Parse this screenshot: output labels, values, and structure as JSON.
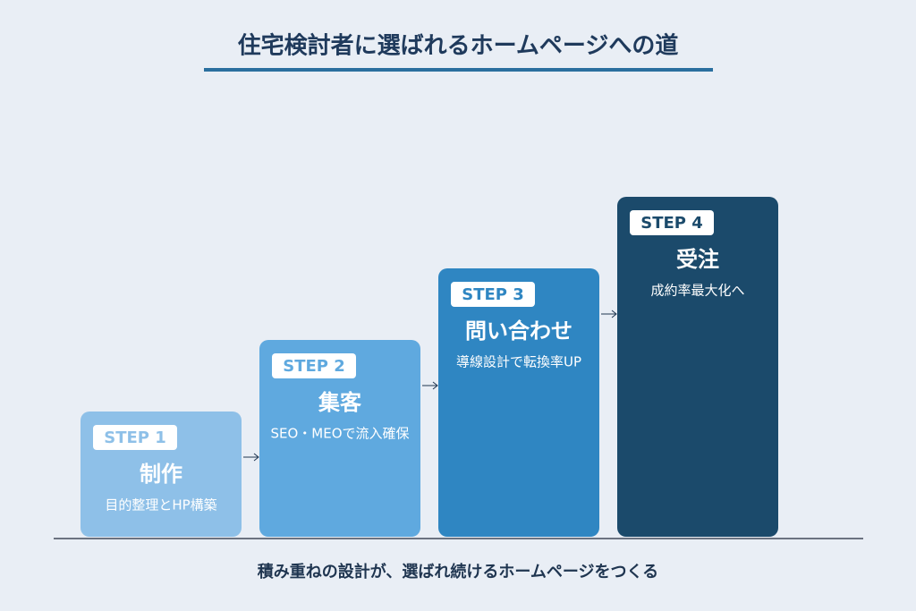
{
  "title": "住宅検討者に選ばれるホームページへの道",
  "steps": [
    {
      "label": "STEP 1",
      "name": "制作",
      "description": "目的整理とHP構築"
    },
    {
      "label": "STEP 2",
      "name": "集客",
      "description": "SEO・MEOで流入確保"
    },
    {
      "label": "STEP 3",
      "name": "問い合わせ",
      "description": "導線設計で転換率UP"
    },
    {
      "label": "STEP 4",
      "name": "受注",
      "description": "成約率最大化へ"
    }
  ],
  "footer": "積み重ねの設計が、選ばれ続けるホームページをつくる"
}
